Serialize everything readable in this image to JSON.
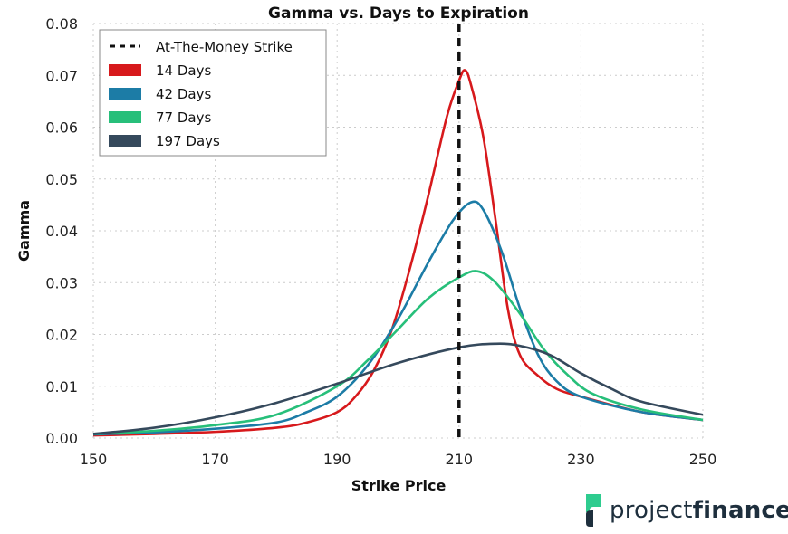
{
  "chart_data": {
    "type": "line",
    "title": "Gamma vs. Days to Expiration",
    "xlabel": "Strike Price",
    "ylabel": "Gamma",
    "xlim": [
      150,
      250
    ],
    "ylim": [
      0,
      0.08
    ],
    "xticks": [
      "150",
      "170",
      "190",
      "210",
      "230",
      "250"
    ],
    "xtick_values": [
      150,
      170,
      190,
      210,
      230,
      250
    ],
    "yticks": [
      "0.00",
      "0.01",
      "0.02",
      "0.03",
      "0.04",
      "0.05",
      "0.06",
      "0.07",
      "0.08"
    ],
    "ytick_values": [
      0,
      0.01,
      0.02,
      0.03,
      0.04,
      0.05,
      0.06,
      0.07,
      0.08
    ],
    "grid": true,
    "legend_position": "top-left",
    "atm_line": {
      "label": "At-The-Money Strike",
      "x": 210,
      "color": "#111111"
    },
    "series": [
      {
        "name": "14 Days",
        "color": "#d7191c",
        "x": [
          150,
          160,
          170,
          180,
          185,
          190,
          193,
          196,
          199,
          202,
          205,
          208,
          210,
          211,
          212,
          214,
          216,
          218,
          220,
          223,
          226,
          230,
          240,
          250
        ],
        "y": [
          0.0005,
          0.0008,
          0.0012,
          0.002,
          0.003,
          0.005,
          0.008,
          0.013,
          0.021,
          0.033,
          0.047,
          0.062,
          0.069,
          0.071,
          0.068,
          0.058,
          0.042,
          0.025,
          0.016,
          0.012,
          0.0095,
          0.008,
          0.005,
          0.0035
        ]
      },
      {
        "name": "42 Days",
        "color": "#1c7ca6",
        "x": [
          150,
          160,
          170,
          180,
          185,
          190,
          195,
          200,
          205,
          209,
          212,
          214,
          217,
          220,
          223,
          226,
          230,
          240,
          250
        ],
        "y": [
          0.0007,
          0.0011,
          0.0018,
          0.003,
          0.005,
          0.008,
          0.014,
          0.023,
          0.034,
          0.042,
          0.0455,
          0.044,
          0.036,
          0.025,
          0.016,
          0.011,
          0.008,
          0.005,
          0.0035
        ]
      },
      {
        "name": "77 Days",
        "color": "#27bf7a",
        "x": [
          150,
          160,
          170,
          180,
          190,
          195,
          200,
          205,
          210,
          213,
          216,
          220,
          224,
          228,
          232,
          240,
          250
        ],
        "y": [
          0.0008,
          0.0014,
          0.0025,
          0.0045,
          0.01,
          0.015,
          0.021,
          0.027,
          0.031,
          0.0322,
          0.03,
          0.024,
          0.017,
          0.012,
          0.0085,
          0.0055,
          0.0035
        ]
      },
      {
        "name": "197 Days",
        "color": "#35495c",
        "x": [
          150,
          160,
          170,
          180,
          190,
          200,
          210,
          216,
          220,
          225,
          230,
          235,
          240,
          250
        ],
        "y": [
          0.0008,
          0.002,
          0.004,
          0.0068,
          0.0105,
          0.0145,
          0.0175,
          0.0182,
          0.0178,
          0.016,
          0.0125,
          0.0095,
          0.007,
          0.0045
        ]
      }
    ]
  },
  "brand": {
    "name_light": "project",
    "name_bold": "finance",
    "accent": "#2ecc8f",
    "dark": "#1e2f3d"
  }
}
